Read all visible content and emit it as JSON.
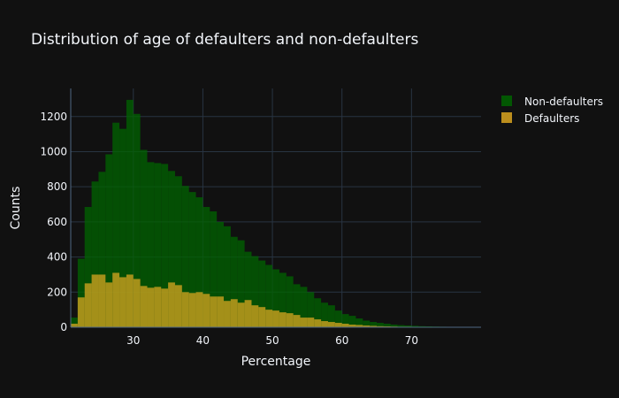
{
  "chart_data": {
    "type": "bar",
    "mode": "overlay-histogram",
    "title": "Distribution of age of defaulters and non-defaulters",
    "xlabel": "Percentage",
    "ylabel": "Counts",
    "xlim": [
      21,
      80
    ],
    "ylim": [
      0,
      1360
    ],
    "bin_start": 21,
    "bin_width": 1,
    "xticks": [
      30,
      40,
      50,
      60,
      70
    ],
    "yticks": [
      0,
      200,
      400,
      600,
      800,
      1000,
      1200
    ],
    "grid": true,
    "legend_position": "top-right",
    "background_color": "#111111",
    "grid_color": "#283442",
    "series": [
      {
        "name": "Non-defaulters",
        "color": "#006400",
        "values": [
          55,
          390,
          685,
          830,
          885,
          985,
          1165,
          1130,
          1295,
          1215,
          1010,
          940,
          935,
          930,
          890,
          860,
          805,
          770,
          740,
          685,
          660,
          600,
          575,
          515,
          495,
          430,
          405,
          380,
          355,
          330,
          310,
          290,
          245,
          230,
          200,
          165,
          140,
          125,
          95,
          75,
          65,
          50,
          38,
          30,
          25,
          20,
          15,
          12,
          10,
          8,
          6,
          5,
          4,
          3,
          2,
          2,
          1,
          1,
          1
        ]
      },
      {
        "name": "Defaulters",
        "color": "#daa520",
        "values": [
          20,
          170,
          250,
          300,
          300,
          255,
          310,
          285,
          300,
          275,
          235,
          225,
          230,
          220,
          255,
          240,
          200,
          195,
          200,
          190,
          175,
          175,
          150,
          160,
          140,
          155,
          125,
          115,
          100,
          95,
          85,
          80,
          70,
          55,
          55,
          45,
          35,
          30,
          25,
          20,
          15,
          13,
          10,
          8,
          6,
          5,
          4,
          3,
          3,
          2,
          2,
          1,
          1,
          1,
          1,
          1,
          0,
          0,
          0
        ]
      }
    ]
  }
}
